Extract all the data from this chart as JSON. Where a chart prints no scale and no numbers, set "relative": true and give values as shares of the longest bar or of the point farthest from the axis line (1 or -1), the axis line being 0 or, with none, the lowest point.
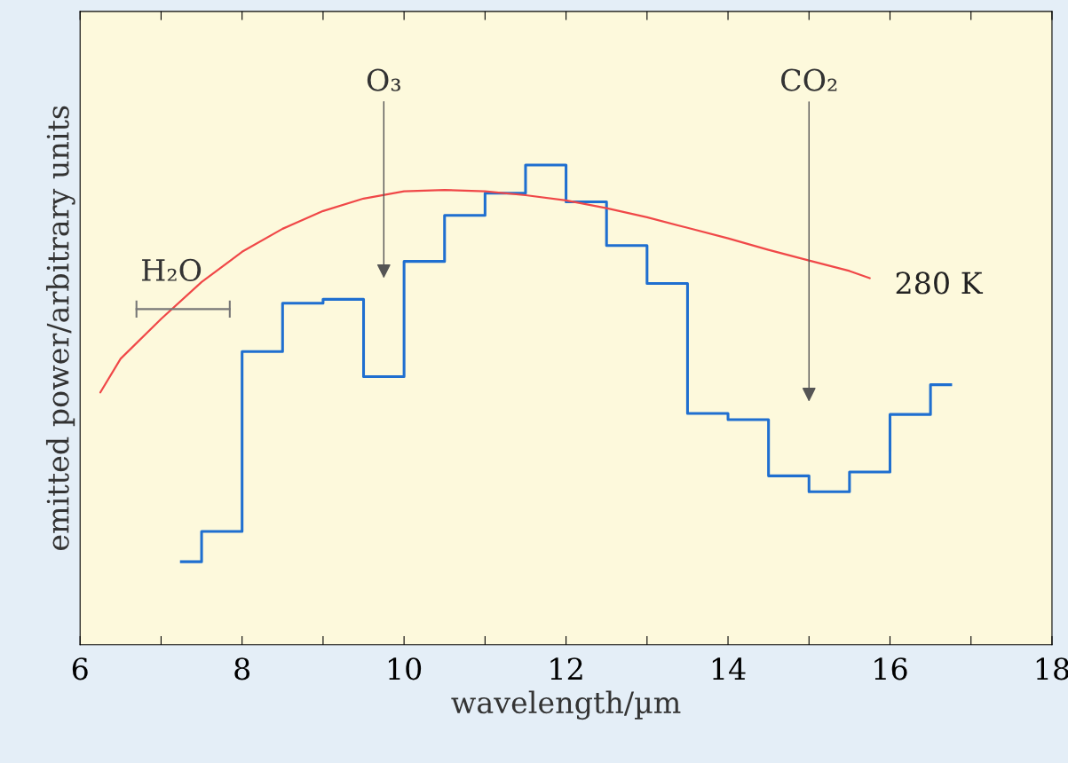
{
  "chart_data": {
    "type": "line",
    "relative": true,
    "xlabel": "wavelength/µm",
    "ylabel": "emitted power/arbitrary units",
    "xlim": [
      6,
      18
    ],
    "xticks": [
      6,
      {
        "value": 7,
        "label": null
      },
      8,
      {
        "value": 9,
        "label": null
      },
      10,
      {
        "value": 11,
        "label": null
      },
      12,
      {
        "value": 13,
        "label": null
      },
      14,
      {
        "value": 15,
        "label": null
      },
      16,
      {
        "value": 17,
        "label": null
      },
      18
    ],
    "grid": false,
    "legend": false,
    "series": [
      {
        "type": "step",
        "color": "#1f6fd0",
        "x": [
          7.25,
          7.5,
          8,
          8.5,
          9,
          9.5,
          10,
          10.5,
          11,
          11.5,
          12,
          12.5,
          13,
          13.5,
          14,
          14.5,
          15,
          15.5,
          16,
          16.5,
          16.75
        ],
        "values": [
          0.173,
          0.236,
          0.611,
          0.712,
          0.72,
          0.559,
          0.799,
          0.895,
          0.941,
          1,
          0.923,
          0.832,
          0.753,
          0.482,
          0.469,
          0.352,
          0.319,
          0.36,
          0.48,
          0.542,
          0.542
        ]
      },
      {
        "name": "280 K",
        "color": "#f04848",
        "x": [
          6.25,
          6.5,
          7,
          7.5,
          8,
          8.5,
          9,
          9.5,
          10,
          10.5,
          11,
          11.5,
          12,
          12.5,
          13,
          13.5,
          14,
          14.5,
          15,
          15.5,
          15.75
        ],
        "values": [
          0.526,
          0.596,
          0.679,
          0.756,
          0.819,
          0.867,
          0.904,
          0.93,
          0.945,
          0.948,
          0.945,
          0.937,
          0.926,
          0.91,
          0.891,
          0.869,
          0.847,
          0.823,
          0.801,
          0.779,
          0.764
        ]
      }
    ],
    "annotations": [
      "O₃",
      "CO₂",
      "H₂O"
    ]
  }
}
